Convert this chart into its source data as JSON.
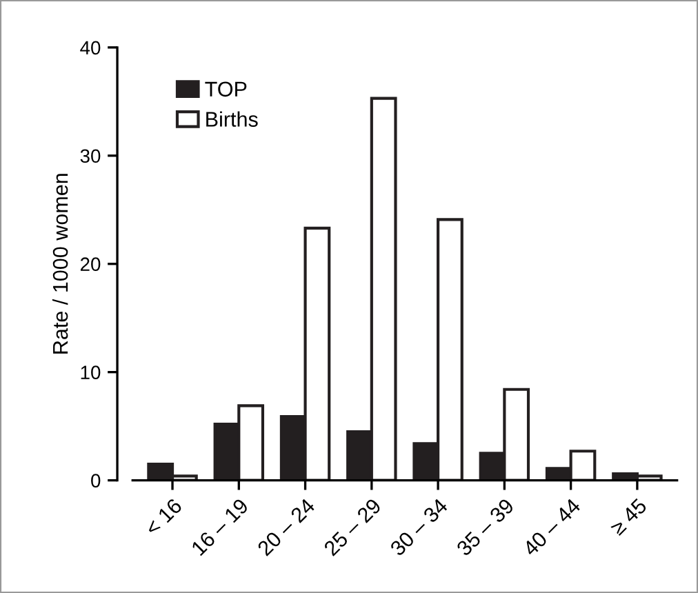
{
  "chart_data": {
    "type": "bar",
    "ylabel": "Rate / 1000 women",
    "categories": [
      "< 16",
      "16 – 19",
      "20 – 24",
      "25 – 29",
      "30 – 34",
      "35 – 39",
      "40 – 44",
      "≥ 45"
    ],
    "series": [
      {
        "name": "TOP",
        "color": "#231f20",
        "values": [
          1.5,
          5.2,
          5.9,
          4.5,
          3.4,
          2.5,
          1.1,
          0.6
        ]
      },
      {
        "name": "Births",
        "color": "#ffffff",
        "values": [
          0.4,
          6.9,
          23.3,
          35.3,
          24.1,
          8.4,
          2.7,
          0.4
        ]
      }
    ],
    "ylim": [
      0,
      40
    ],
    "yticks": [
      0,
      10,
      20,
      30,
      40
    ],
    "legend": "top left",
    "grid": false
  }
}
